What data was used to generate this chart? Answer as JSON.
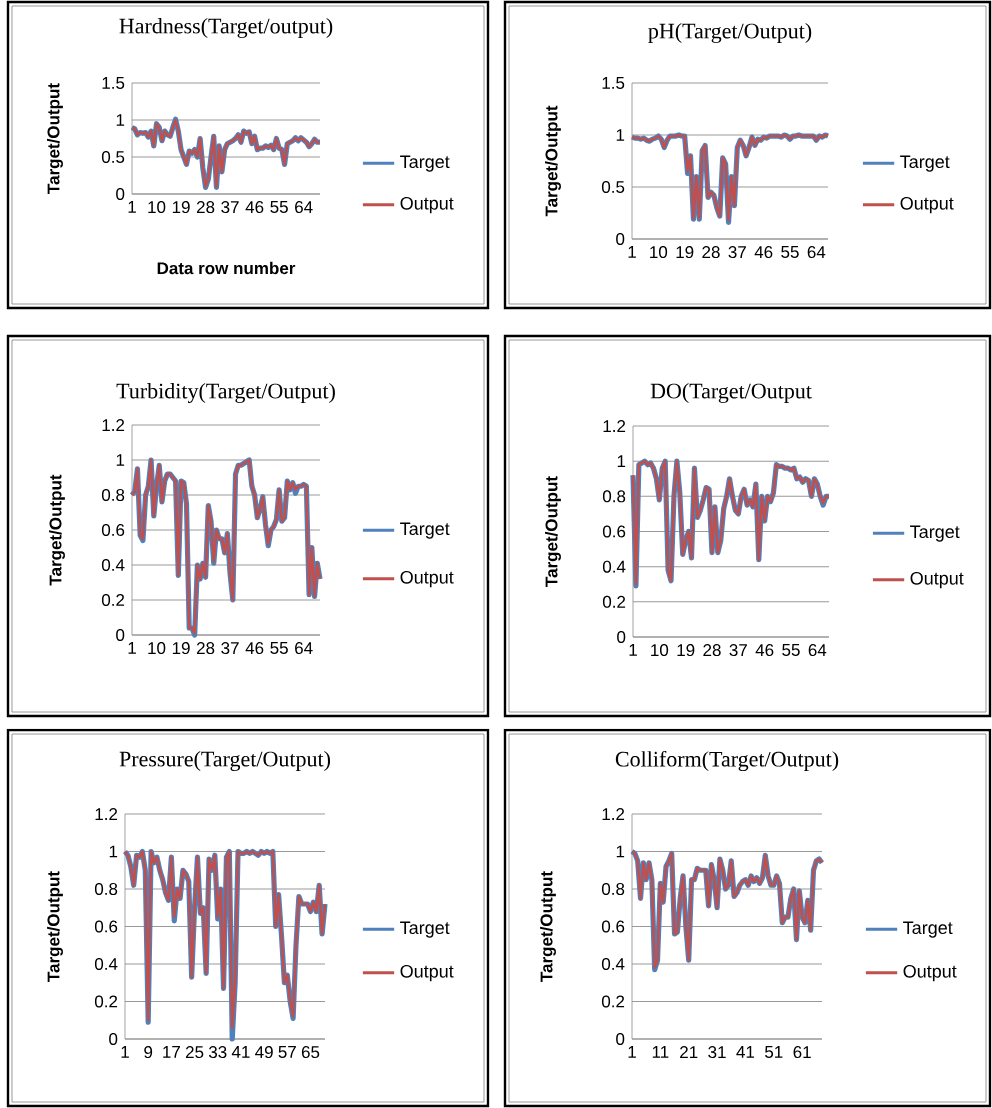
{
  "chart_data": [
    {
      "type": "line",
      "title": "Hardness(Target/output)",
      "xlabel": "Data row number",
      "ylabel": "Target/Output",
      "grid": "y",
      "legend": "right",
      "ylim": [
        0,
        1.5
      ],
      "yticks": [
        0,
        0.5,
        1,
        1.5
      ],
      "categories": [
        "1",
        null,
        null,
        null,
        null,
        null,
        null,
        null,
        null,
        "10",
        null,
        null,
        null,
        null,
        null,
        null,
        null,
        null,
        "19",
        null,
        null,
        null,
        null,
        null,
        null,
        null,
        null,
        "28",
        null,
        null,
        null,
        null,
        null,
        null,
        null,
        null,
        "37",
        null,
        null,
        null,
        null,
        null,
        null,
        null,
        null,
        "46",
        null,
        null,
        null,
        null,
        null,
        null,
        null,
        null,
        "55",
        null,
        null,
        null,
        null,
        null,
        null,
        null,
        null,
        "64",
        null,
        null,
        null,
        null,
        null,
        null
      ],
      "series": [
        {
          "name": "Target",
          "color": "#4f81bd",
          "values": [
            0.9,
            0.88,
            0.8,
            0.83,
            0.82,
            0.83,
            0.77,
            0.85,
            0.65,
            0.95,
            0.9,
            0.72,
            0.85,
            0.8,
            0.78,
            0.9,
            1.01,
            0.85,
            0.6,
            0.5,
            0.4,
            0.58,
            0.55,
            0.6,
            0.5,
            0.75,
            0.35,
            0.09,
            0.2,
            0.5,
            0.78,
            0.09,
            0.65,
            0.3,
            0.6,
            0.68,
            0.7,
            0.72,
            0.75,
            0.8,
            0.7,
            0.85,
            0.82,
            0.84,
            0.68,
            0.78,
            0.6,
            0.62,
            0.62,
            0.65,
            0.63,
            0.66,
            0.6,
            0.75,
            0.62,
            0.6,
            0.4,
            0.68,
            0.7,
            0.72,
            0.76,
            0.72,
            0.76,
            0.73,
            0.7,
            0.64,
            0.68,
            0.74,
            0.7,
            0.7
          ]
        },
        {
          "name": "Output",
          "color": "#c0504d",
          "values": [
            0.9,
            0.88,
            0.8,
            0.83,
            0.82,
            0.83,
            0.77,
            0.85,
            0.65,
            0.95,
            0.9,
            0.72,
            0.85,
            0.8,
            0.78,
            0.9,
            1.0,
            0.85,
            0.6,
            0.5,
            0.4,
            0.58,
            0.55,
            0.6,
            0.5,
            0.75,
            0.35,
            0.1,
            0.2,
            0.5,
            0.78,
            0.1,
            0.65,
            0.3,
            0.6,
            0.68,
            0.7,
            0.72,
            0.75,
            0.8,
            0.7,
            0.85,
            0.82,
            0.84,
            0.68,
            0.78,
            0.6,
            0.62,
            0.62,
            0.65,
            0.63,
            0.66,
            0.6,
            0.75,
            0.62,
            0.6,
            0.4,
            0.68,
            0.7,
            0.72,
            0.76,
            0.72,
            0.76,
            0.73,
            0.7,
            0.64,
            0.68,
            0.74,
            0.7,
            0.7
          ]
        }
      ]
    },
    {
      "type": "line",
      "title": "pH(Target/Output)",
      "ylabel": "Target/Output",
      "grid": "y",
      "legend": "right",
      "ylim": [
        0,
        1.5
      ],
      "yticks": [
        0,
        0.5,
        1,
        1.5
      ],
      "categories": [
        "1",
        null,
        null,
        null,
        null,
        null,
        null,
        null,
        null,
        "10",
        null,
        null,
        null,
        null,
        null,
        null,
        null,
        null,
        "19",
        null,
        null,
        null,
        null,
        null,
        null,
        null,
        null,
        "28",
        null,
        null,
        null,
        null,
        null,
        null,
        null,
        null,
        "37",
        null,
        null,
        null,
        null,
        null,
        null,
        null,
        null,
        "46",
        null,
        null,
        null,
        null,
        null,
        null,
        null,
        null,
        "55",
        null,
        null,
        null,
        null,
        null,
        null,
        null,
        null,
        "64",
        null,
        null,
        null,
        null
      ],
      "series": [
        {
          "name": "Target",
          "color": "#4f81bd",
          "values": [
            0.98,
            0.97,
            0.97,
            0.96,
            0.97,
            0.95,
            0.94,
            0.96,
            0.97,
            0.99,
            0.96,
            0.88,
            0.95,
            0.99,
            0.99,
            0.99,
            1.0,
            0.99,
            0.99,
            0.63,
            0.8,
            0.19,
            0.6,
            0.19,
            0.85,
            0.9,
            0.4,
            0.45,
            0.42,
            0.3,
            0.22,
            0.78,
            0.72,
            0.16,
            0.6,
            0.32,
            0.88,
            0.95,
            0.9,
            0.8,
            0.88,
            0.98,
            0.9,
            0.96,
            0.95,
            0.98,
            0.97,
            0.99,
            0.99,
            0.99,
            0.99,
            0.98,
            1.0,
            0.99,
            0.96,
            0.99,
            0.99,
            1.0,
            0.99,
            0.99,
            0.99,
            0.99,
            0.99,
            0.95,
            0.99,
            0.98,
            1.0,
            0.99
          ]
        },
        {
          "name": "Output",
          "color": "#c0504d",
          "values": [
            0.98,
            0.97,
            0.97,
            0.96,
            0.97,
            0.95,
            0.94,
            0.96,
            0.97,
            0.99,
            0.96,
            0.88,
            0.95,
            0.99,
            0.99,
            0.99,
            1.0,
            0.99,
            0.99,
            0.65,
            0.8,
            0.2,
            0.6,
            0.2,
            0.85,
            0.9,
            0.4,
            0.45,
            0.42,
            0.3,
            0.22,
            0.78,
            0.72,
            0.18,
            0.6,
            0.32,
            0.88,
            0.95,
            0.9,
            0.8,
            0.88,
            0.98,
            0.9,
            0.96,
            0.95,
            0.98,
            0.97,
            0.99,
            0.99,
            0.99,
            0.99,
            0.98,
            1.0,
            0.99,
            0.96,
            0.99,
            0.99,
            1.0,
            0.99,
            0.99,
            0.99,
            0.99,
            0.99,
            0.95,
            0.99,
            0.98,
            1.0,
            0.99
          ]
        }
      ]
    },
    {
      "type": "line",
      "title": "Turbidity(Target/Output)",
      "ylabel": "Target/Output",
      "grid": "y",
      "legend": "right",
      "ylim": [
        0,
        1.2
      ],
      "yticks": [
        0,
        0.2,
        0.4,
        0.6,
        0.8,
        1,
        1.2
      ],
      "categories": [
        "1",
        null,
        null,
        null,
        null,
        null,
        null,
        null,
        null,
        "10",
        null,
        null,
        null,
        null,
        null,
        null,
        null,
        null,
        "19",
        null,
        null,
        null,
        null,
        null,
        null,
        null,
        null,
        "28",
        null,
        null,
        null,
        null,
        null,
        null,
        null,
        null,
        "37",
        null,
        null,
        null,
        null,
        null,
        null,
        null,
        null,
        "46",
        null,
        null,
        null,
        null,
        null,
        null,
        null,
        null,
        "55",
        null,
        null,
        null,
        null,
        null,
        null,
        null,
        null,
        "64",
        null,
        null,
        null,
        null,
        null,
        null
      ],
      "series": [
        {
          "name": "Target",
          "color": "#4f81bd",
          "values": [
            0.8,
            0.82,
            0.95,
            0.57,
            0.54,
            0.8,
            0.85,
            1.0,
            0.68,
            0.85,
            0.97,
            0.76,
            0.88,
            0.92,
            0.92,
            0.9,
            0.88,
            0.34,
            0.88,
            0.87,
            0.75,
            0.04,
            0.04,
            0.0,
            0.4,
            0.32,
            0.41,
            0.33,
            0.74,
            0.65,
            0.41,
            0.6,
            0.55,
            0.55,
            0.47,
            0.58,
            0.35,
            0.2,
            0.92,
            0.97,
            0.97,
            0.98,
            0.99,
            1.0,
            0.85,
            0.8,
            0.67,
            0.72,
            0.79,
            0.63,
            0.51,
            0.6,
            0.62,
            0.66,
            0.83,
            0.65,
            0.67,
            0.88,
            0.83,
            0.87,
            0.81,
            0.85,
            0.85,
            0.86,
            0.85,
            0.23,
            0.5,
            0.22,
            0.41,
            0.32
          ]
        },
        {
          "name": "Output",
          "color": "#c0504d",
          "values": [
            0.8,
            0.82,
            0.95,
            0.57,
            0.55,
            0.8,
            0.85,
            1.0,
            0.68,
            0.85,
            0.97,
            0.76,
            0.88,
            0.92,
            0.92,
            0.9,
            0.88,
            0.34,
            0.88,
            0.87,
            0.75,
            0.04,
            0.04,
            0.01,
            0.4,
            0.32,
            0.41,
            0.33,
            0.74,
            0.65,
            0.42,
            0.6,
            0.55,
            0.55,
            0.47,
            0.58,
            0.35,
            0.2,
            0.92,
            0.97,
            0.97,
            0.98,
            0.99,
            1.0,
            0.85,
            0.8,
            0.67,
            0.72,
            0.79,
            0.63,
            0.52,
            0.6,
            0.62,
            0.66,
            0.83,
            0.65,
            0.67,
            0.88,
            0.83,
            0.87,
            0.83,
            0.85,
            0.85,
            0.86,
            0.85,
            0.23,
            0.5,
            0.22,
            0.41,
            0.32
          ]
        }
      ]
    },
    {
      "type": "line",
      "title": "DO(Target/Output",
      "ylabel": "Target/Output",
      "grid": "y",
      "legend": "right",
      "ylim": [
        0,
        1.2
      ],
      "yticks": [
        0,
        0.2,
        0.4,
        0.6,
        0.8,
        1,
        1.2
      ],
      "categories": [
        "1",
        null,
        null,
        null,
        null,
        null,
        null,
        null,
        null,
        "10",
        null,
        null,
        null,
        null,
        null,
        null,
        null,
        null,
        "19",
        null,
        null,
        null,
        null,
        null,
        null,
        null,
        null,
        "28",
        null,
        null,
        null,
        null,
        null,
        null,
        null,
        null,
        "37",
        null,
        null,
        null,
        null,
        null,
        null,
        null,
        null,
        "46",
        null,
        null,
        null,
        null,
        null,
        null,
        null,
        null,
        "55",
        null,
        null,
        null,
        null,
        null,
        null,
        null,
        null,
        "64",
        null,
        null,
        null,
        null
      ],
      "series": [
        {
          "name": "Target",
          "color": "#4f81bd",
          "values": [
            0.92,
            0.29,
            0.98,
            0.99,
            1.0,
            0.98,
            0.99,
            0.96,
            0.9,
            0.78,
            0.96,
            1.0,
            0.38,
            0.32,
            0.8,
            1.0,
            0.82,
            0.47,
            0.55,
            0.6,
            0.45,
            0.96,
            0.68,
            0.72,
            0.78,
            0.85,
            0.84,
            0.48,
            0.74,
            0.48,
            0.55,
            0.73,
            0.8,
            0.9,
            0.8,
            0.72,
            0.7,
            0.8,
            0.84,
            0.75,
            0.78,
            0.74,
            0.87,
            0.44,
            0.8,
            0.66,
            0.8,
            0.77,
            0.82,
            0.98,
            0.97,
            0.97,
            0.96,
            0.96,
            0.95,
            0.96,
            0.9,
            0.91,
            0.88,
            0.9,
            0.89,
            0.8,
            0.9,
            0.87,
            0.8,
            0.75,
            0.8,
            0.8
          ]
        },
        {
          "name": "Output",
          "color": "#c0504d",
          "values": [
            0.92,
            0.3,
            0.98,
            0.99,
            1.0,
            0.98,
            0.99,
            0.96,
            0.9,
            0.78,
            0.96,
            1.0,
            0.38,
            0.32,
            0.8,
            1.0,
            0.82,
            0.47,
            0.55,
            0.6,
            0.45,
            0.96,
            0.68,
            0.72,
            0.78,
            0.85,
            0.84,
            0.48,
            0.74,
            0.48,
            0.55,
            0.73,
            0.8,
            0.9,
            0.8,
            0.72,
            0.7,
            0.8,
            0.84,
            0.75,
            0.78,
            0.74,
            0.87,
            0.44,
            0.8,
            0.66,
            0.8,
            0.77,
            0.82,
            0.98,
            0.97,
            0.97,
            0.96,
            0.96,
            0.95,
            0.96,
            0.9,
            0.91,
            0.88,
            0.9,
            0.89,
            0.8,
            0.9,
            0.87,
            0.8,
            0.76,
            0.8,
            0.8
          ]
        }
      ]
    },
    {
      "type": "line",
      "title": "Pressure(Target/Output)",
      "ylabel": "Target/Output",
      "grid": "y",
      "legend": "right",
      "ylim": [
        0,
        1.2
      ],
      "yticks": [
        0,
        0.2,
        0.4,
        0.6,
        0.8,
        1,
        1.2
      ],
      "categories": [
        "1",
        null,
        null,
        null,
        null,
        null,
        null,
        null,
        "9",
        null,
        null,
        null,
        null,
        null,
        null,
        null,
        "17",
        null,
        null,
        null,
        null,
        null,
        null,
        null,
        "25",
        null,
        null,
        null,
        null,
        null,
        null,
        null,
        "33",
        null,
        null,
        null,
        null,
        null,
        null,
        null,
        "41",
        null,
        null,
        null,
        null,
        null,
        null,
        null,
        "49",
        null,
        null,
        null,
        null,
        null,
        null,
        null,
        "57",
        null,
        null,
        null,
        null,
        null,
        null,
        null,
        "65",
        null,
        null,
        null,
        null,
        null
      ],
      "series": [
        {
          "name": "Target",
          "color": "#4f81bd",
          "values": [
            1.0,
            0.98,
            0.92,
            0.82,
            0.98,
            0.97,
            1.0,
            0.9,
            0.09,
            1.0,
            0.94,
            0.97,
            0.9,
            0.85,
            0.78,
            0.74,
            0.97,
            0.63,
            0.8,
            0.75,
            0.9,
            0.88,
            0.84,
            0.33,
            0.7,
            0.97,
            0.67,
            0.7,
            0.35,
            0.96,
            0.9,
            0.98,
            0.64,
            0.8,
            0.27,
            0.97,
            1.0,
            0.0,
            0.3,
            1.0,
            0.99,
            0.99,
            1.0,
            0.99,
            1.0,
            0.99,
            0.98,
            1.0,
            0.99,
            1.0,
            0.99,
            1.0,
            0.6,
            0.77,
            0.55,
            0.3,
            0.34,
            0.2,
            0.11,
            0.5,
            0.76,
            0.72,
            0.72,
            0.72,
            0.68,
            0.73,
            0.68,
            0.82,
            0.56,
            0.72
          ]
        },
        {
          "name": "Output",
          "color": "#c0504d",
          "values": [
            1.0,
            0.98,
            0.92,
            0.82,
            0.98,
            0.97,
            1.0,
            0.9,
            0.1,
            1.0,
            0.94,
            0.97,
            0.9,
            0.85,
            0.78,
            0.74,
            0.97,
            0.65,
            0.8,
            0.75,
            0.9,
            0.88,
            0.84,
            0.33,
            0.7,
            0.97,
            0.67,
            0.7,
            0.35,
            0.96,
            0.9,
            0.98,
            0.65,
            0.8,
            0.27,
            0.97,
            1.0,
            0.06,
            0.3,
            1.0,
            0.99,
            0.99,
            1.0,
            0.99,
            1.0,
            0.99,
            0.98,
            1.0,
            0.99,
            1.0,
            0.99,
            1.0,
            0.6,
            0.77,
            0.55,
            0.3,
            0.34,
            0.2,
            0.12,
            0.5,
            0.76,
            0.72,
            0.72,
            0.72,
            0.68,
            0.73,
            0.68,
            0.82,
            0.56,
            0.72
          ]
        }
      ]
    },
    {
      "type": "line",
      "title": "Colliform(Target/Output)",
      "ylabel": "Target/Output",
      "grid": "y",
      "legend": "right",
      "ylim": [
        0,
        1.2
      ],
      "yticks": [
        0,
        0.2,
        0.4,
        0.6,
        0.8,
        1,
        1.2
      ],
      "categories": [
        "1",
        null,
        null,
        null,
        null,
        null,
        null,
        null,
        null,
        null,
        "11",
        null,
        null,
        null,
        null,
        null,
        null,
        null,
        null,
        null,
        "21",
        null,
        null,
        null,
        null,
        null,
        null,
        null,
        null,
        null,
        "31",
        null,
        null,
        null,
        null,
        null,
        null,
        null,
        null,
        null,
        "41",
        null,
        null,
        null,
        null,
        null,
        null,
        null,
        null,
        null,
        "51",
        null,
        null,
        null,
        null,
        null,
        null,
        null,
        null,
        null,
        "61",
        null,
        null,
        null,
        null,
        null,
        null,
        null
      ],
      "series": [
        {
          "name": "Target",
          "color": "#4f81bd",
          "values": [
            1.0,
            0.99,
            0.95,
            0.75,
            0.94,
            0.85,
            0.94,
            0.85,
            0.37,
            0.42,
            0.83,
            0.73,
            0.92,
            0.95,
            0.99,
            0.56,
            0.57,
            0.75,
            0.87,
            0.6,
            0.42,
            0.85,
            0.85,
            0.91,
            0.9,
            0.9,
            0.9,
            0.71,
            0.93,
            0.85,
            0.7,
            0.96,
            0.9,
            0.8,
            0.82,
            0.95,
            0.76,
            0.78,
            0.82,
            0.84,
            0.85,
            0.82,
            0.87,
            0.84,
            0.86,
            0.83,
            0.86,
            0.98,
            0.87,
            0.82,
            0.82,
            0.87,
            0.83,
            0.62,
            0.65,
            0.65,
            0.75,
            0.8,
            0.53,
            0.79,
            0.65,
            0.62,
            0.74,
            0.58,
            0.9,
            0.95,
            0.96,
            0.94
          ]
        },
        {
          "name": "Output",
          "color": "#c0504d",
          "values": [
            1.0,
            0.99,
            0.95,
            0.75,
            0.94,
            0.85,
            0.94,
            0.85,
            0.38,
            0.42,
            0.83,
            0.73,
            0.92,
            0.95,
            0.99,
            0.56,
            0.57,
            0.75,
            0.87,
            0.6,
            0.42,
            0.85,
            0.85,
            0.91,
            0.9,
            0.9,
            0.9,
            0.71,
            0.93,
            0.85,
            0.7,
            0.96,
            0.9,
            0.8,
            0.82,
            0.95,
            0.76,
            0.78,
            0.82,
            0.84,
            0.85,
            0.82,
            0.87,
            0.84,
            0.86,
            0.83,
            0.86,
            0.98,
            0.87,
            0.82,
            0.82,
            0.87,
            0.83,
            0.62,
            0.65,
            0.65,
            0.75,
            0.8,
            0.53,
            0.79,
            0.65,
            0.62,
            0.74,
            0.58,
            0.9,
            0.95,
            0.96,
            0.94
          ]
        }
      ]
    }
  ]
}
